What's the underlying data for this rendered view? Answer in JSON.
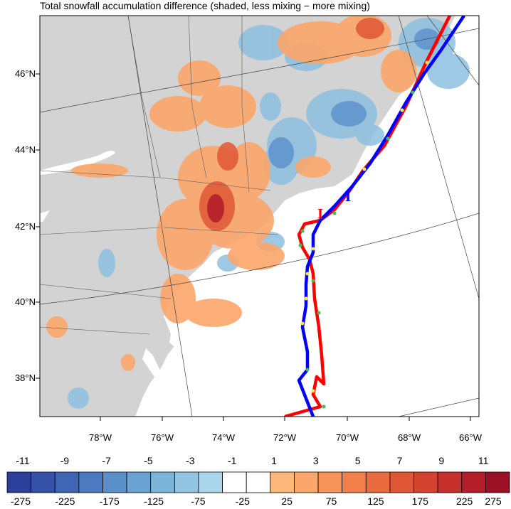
{
  "title": "Total snowfall accumulation difference (shaded, less mixing − more mixing)",
  "lat_labels": [
    "46°N",
    "44°N",
    "42°N",
    "40°N",
    "38°N"
  ],
  "lon_labels": [
    "78°W",
    "76°W",
    "74°W",
    "72°W",
    "70°W",
    "68°W",
    "66°W"
  ],
  "colorbar": {
    "top_labels": [
      "-11",
      "-9",
      "-7",
      "-5",
      "-3",
      "-1",
      "1",
      "3",
      "5",
      "7",
      "9",
      "11"
    ],
    "bottom_labels": [
      "-275",
      "-225",
      "-175",
      "-125",
      "-75",
      "-25",
      "25",
      "75",
      "125",
      "175",
      "225",
      "275"
    ],
    "colors": [
      "#2c3f9c",
      "#3552a8",
      "#3f66b4",
      "#4b7ac0",
      "#5a8fca",
      "#6aa2d2",
      "#7db4da",
      "#93c5e3",
      "#aad5eb",
      "#ffffff",
      "#ffffff",
      "#fcb77a",
      "#fba66a",
      "#f8935a",
      "#f27f4c",
      "#ea6b40",
      "#e05736",
      "#d4432f",
      "#c52f2c",
      "#b31e2a",
      "#9c1026"
    ]
  },
  "colors": {
    "land": "#d3d3d3",
    "ocean": "#ffffff",
    "track_a": "#ff0000",
    "track_b": "#0000ff",
    "marker_yellow": "#f2e84a",
    "marker_green": "#3ec04a"
  }
}
